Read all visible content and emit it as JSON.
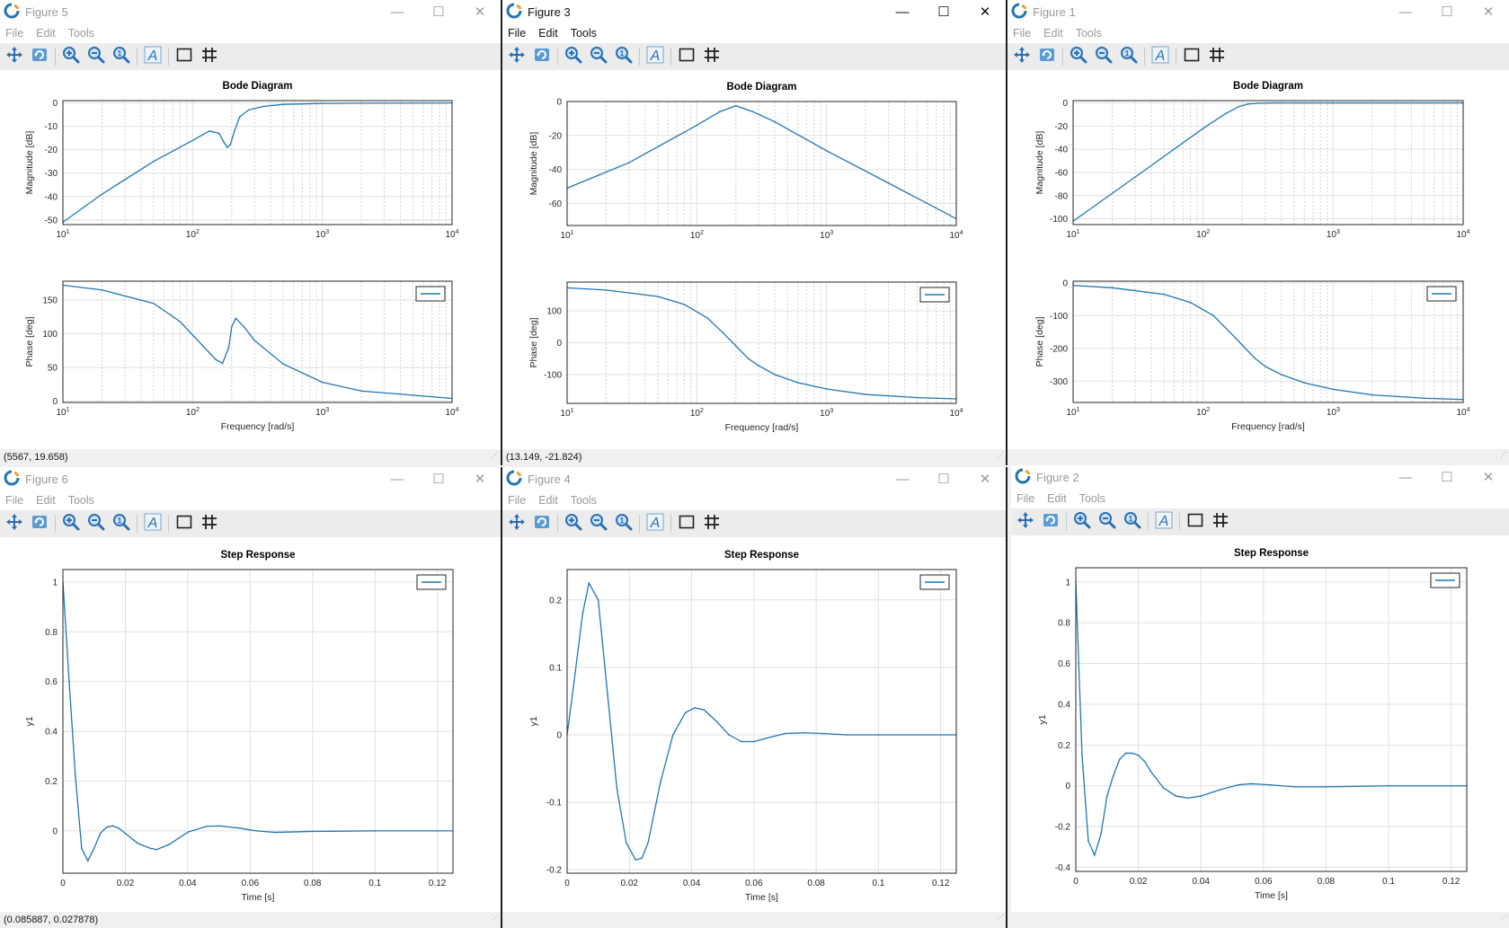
{
  "menu": [
    "File",
    "Edit",
    "Tools"
  ],
  "window_controls": [
    "minimize-icon",
    "maximize-icon",
    "close-icon"
  ],
  "toolbar_icons": [
    "pan-icon",
    "reset-view-icon",
    "zoom-in-icon",
    "zoom-out-icon",
    "zoom-fit-icon",
    "text-icon",
    "box-icon",
    "grid-icon"
  ],
  "line_color": "#1f77b4",
  "figures": [
    {
      "id": "fig5",
      "title": "Figure 5",
      "active": false,
      "status": "(5567, 19.658)"
    },
    {
      "id": "fig3",
      "title": "Figure 3",
      "active": true,
      "status": "(13.149, -21.824)"
    },
    {
      "id": "fig1",
      "title": "Figure 1",
      "active": false,
      "status": ""
    },
    {
      "id": "fig6",
      "title": "Figure 6",
      "active": false,
      "status": "(0.085887, 0.027878)"
    },
    {
      "id": "fig4",
      "title": "Figure 4",
      "active": false,
      "status": ""
    },
    {
      "id": "fig2",
      "title": "Figure 2",
      "active": false,
      "status": ""
    }
  ],
  "chart_data": [
    {
      "figure": "Figure 5",
      "type": "line",
      "title": "Bode Diagram",
      "xscale": "log",
      "xlabel": "Frequency [rad/s]",
      "xlim": [
        10,
        10000
      ],
      "xticks": [
        "10^1",
        "10^2",
        "10^3",
        "10^4"
      ],
      "grid": true,
      "legend_placement": "top-right (lower axes)",
      "magnitude": {
        "ylabel": "Magnitude [dB]",
        "ylim": [
          -52,
          1
        ],
        "yticks": [
          0,
          -10,
          -20,
          -30,
          -40,
          -50
        ],
        "x": [
          10,
          20,
          50,
          100,
          135,
          160,
          175,
          185,
          195,
          210,
          230,
          270,
          350,
          500,
          1000,
          2000,
          10000
        ],
        "y": [
          -51,
          -39,
          -25,
          -16,
          -12,
          -13,
          -17,
          -19,
          -18,
          -12,
          -6,
          -3,
          -1.5,
          -0.6,
          -0.2,
          -0.1,
          0
        ]
      },
      "phase": {
        "ylabel": "Phase [deg]",
        "ylim": [
          -2,
          178
        ],
        "yticks": [
          0,
          50,
          100,
          150
        ],
        "x": [
          10,
          20,
          50,
          80,
          120,
          150,
          170,
          190,
          200,
          215,
          250,
          300,
          500,
          1000,
          2000,
          10000
        ],
        "y": [
          172,
          165,
          145,
          118,
          82,
          62,
          56,
          80,
          110,
          123,
          110,
          90,
          55,
          28,
          15,
          4
        ]
      }
    },
    {
      "figure": "Figure 3",
      "type": "line",
      "title": "Bode Diagram",
      "xscale": "log",
      "xlabel": "Frequency [rad/s]",
      "xlim": [
        10,
        10000
      ],
      "xticks": [
        "10^1",
        "10^2",
        "10^3",
        "10^4"
      ],
      "grid": true,
      "legend_placement": "top-right (lower axes)",
      "magnitude": {
        "ylabel": "Magnitude [dB]",
        "ylim": [
          -73,
          0
        ],
        "yticks": [
          0,
          -20,
          -40,
          -60
        ],
        "x": [
          10,
          30,
          100,
          150,
          200,
          270,
          400,
          1000,
          3000,
          10000
        ],
        "y": [
          -51,
          -36,
          -14,
          -6,
          -2.5,
          -6,
          -12,
          -29,
          -48,
          -69
        ]
      },
      "phase": {
        "ylabel": "Phase [deg]",
        "ylim": [
          -190,
          190
        ],
        "yticks": [
          100,
          0,
          -100
        ],
        "x": [
          10,
          20,
          50,
          80,
          120,
          160,
          200,
          250,
          300,
          400,
          600,
          1000,
          2000,
          5000,
          10000
        ],
        "y": [
          172,
          165,
          145,
          120,
          78,
          30,
          -10,
          -50,
          -72,
          -100,
          -125,
          -145,
          -162,
          -172,
          -176
        ]
      }
    },
    {
      "figure": "Figure 1",
      "type": "line",
      "title": "Bode Diagram",
      "xscale": "log",
      "xlabel": "Frequency [rad/s]",
      "xlim": [
        10,
        10000
      ],
      "xticks": [
        "10^1",
        "10^2",
        "10^3",
        "10^4"
      ],
      "grid": true,
      "legend_placement": "top-right (lower axes)",
      "magnitude": {
        "ylabel": "Magnitude [dB]",
        "ylim": [
          -105,
          2
        ],
        "yticks": [
          0,
          -20,
          -40,
          -60,
          -80,
          -100
        ],
        "x": [
          10,
          30,
          100,
          150,
          190,
          220,
          260,
          350,
          1000,
          10000
        ],
        "y": [
          -102,
          -64,
          -22,
          -9,
          -3,
          -1,
          -0.3,
          0,
          0,
          0
        ]
      },
      "phase": {
        "ylabel": "Phase [deg]",
        "ylim": [
          -365,
          5
        ],
        "yticks": [
          0,
          -100,
          -200,
          -300
        ],
        "x": [
          10,
          20,
          50,
          80,
          120,
          160,
          200,
          250,
          300,
          400,
          600,
          1000,
          2000,
          5000,
          10000
        ],
        "y": [
          -8,
          -15,
          -35,
          -60,
          -100,
          -150,
          -190,
          -230,
          -255,
          -280,
          -305,
          -325,
          -342,
          -352,
          -356
        ]
      }
    },
    {
      "figure": "Figure 6",
      "type": "line",
      "title": "Step Response",
      "xlabel": "Time [s]",
      "ylabel": "y1",
      "xlim": [
        0,
        0.125
      ],
      "ylim": [
        -0.17,
        1.05
      ],
      "xticks": [
        0,
        0.02,
        0.04,
        0.06,
        0.08,
        0.1,
        0.12
      ],
      "yticks": [
        0,
        0.2,
        0.4,
        0.6,
        0.8,
        1
      ],
      "grid": true,
      "legend_placement": "top-right",
      "x": [
        0,
        0.002,
        0.004,
        0.006,
        0.008,
        0.01,
        0.012,
        0.014,
        0.016,
        0.018,
        0.02,
        0.024,
        0.028,
        0.03,
        0.034,
        0.04,
        0.046,
        0.05,
        0.056,
        0.062,
        0.068,
        0.08,
        0.1,
        0.125
      ],
      "y": [
        1.0,
        0.6,
        0.22,
        -0.07,
        -0.12,
        -0.07,
        -0.01,
        0.015,
        0.02,
        0.01,
        -0.01,
        -0.05,
        -0.07,
        -0.075,
        -0.055,
        -0.005,
        0.018,
        0.02,
        0.012,
        0.0,
        -0.006,
        -0.002,
        0.0,
        0.0
      ]
    },
    {
      "figure": "Figure 4",
      "type": "line",
      "title": "Step Response",
      "xlabel": "Time [s]",
      "ylabel": "y1",
      "xlim": [
        0,
        0.125
      ],
      "ylim": [
        -0.205,
        0.245
      ],
      "xticks": [
        0,
        0.02,
        0.04,
        0.06,
        0.08,
        0.1,
        0.12
      ],
      "yticks": [
        -0.2,
        -0.1,
        0,
        0.1,
        0.2
      ],
      "grid": true,
      "legend_placement": "top-right",
      "x": [
        0,
        0.002,
        0.005,
        0.007,
        0.01,
        0.013,
        0.016,
        0.019,
        0.022,
        0.024,
        0.026,
        0.03,
        0.034,
        0.038,
        0.041,
        0.044,
        0.048,
        0.052,
        0.056,
        0.06,
        0.064,
        0.07,
        0.076,
        0.082,
        0.09,
        0.1,
        0.125
      ],
      "y": [
        0,
        0.07,
        0.18,
        0.225,
        0.2,
        0.06,
        -0.08,
        -0.16,
        -0.185,
        -0.183,
        -0.16,
        -0.07,
        0.0,
        0.033,
        0.04,
        0.037,
        0.02,
        0.0,
        -0.01,
        -0.01,
        -0.005,
        0.002,
        0.003,
        0.002,
        0.0,
        0.0,
        0.0
      ]
    },
    {
      "figure": "Figure 2",
      "type": "line",
      "title": "Step Response",
      "xlabel": "Time [s]",
      "ylabel": "y1",
      "xlim": [
        0,
        0.125
      ],
      "ylim": [
        -0.42,
        1.07
      ],
      "xticks": [
        0,
        0.02,
        0.04,
        0.06,
        0.08,
        0.1,
        0.12
      ],
      "yticks": [
        -0.4,
        -0.2,
        0,
        0.2,
        0.4,
        0.6,
        0.8,
        1
      ],
      "grid": true,
      "legend_placement": "top-right",
      "x": [
        0,
        0.002,
        0.004,
        0.006,
        0.008,
        0.01,
        0.012,
        0.014,
        0.016,
        0.018,
        0.02,
        0.022,
        0.024,
        0.028,
        0.032,
        0.036,
        0.04,
        0.046,
        0.052,
        0.056,
        0.062,
        0.07,
        0.08,
        0.1,
        0.125
      ],
      "y": [
        1.0,
        0.15,
        -0.27,
        -0.34,
        -0.24,
        -0.05,
        0.05,
        0.13,
        0.16,
        0.16,
        0.15,
        0.12,
        0.07,
        -0.01,
        -0.05,
        -0.06,
        -0.05,
        -0.02,
        0.005,
        0.01,
        0.005,
        -0.005,
        -0.005,
        0.0,
        0.0
      ]
    }
  ]
}
